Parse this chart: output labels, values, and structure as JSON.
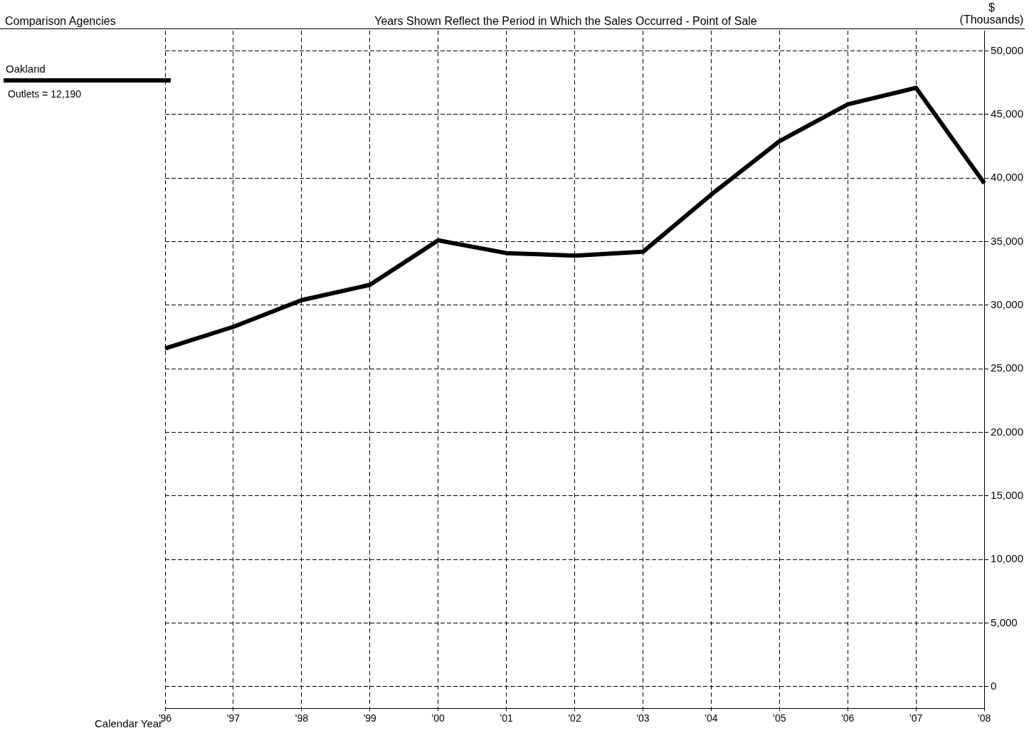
{
  "chart_data": {
    "type": "line",
    "title": "Years Shown Reflect the Period in Which the Sales Occurred - Point of Sale",
    "legend_title": "Comparison Agencies",
    "ylabel": "$ (Thousands)",
    "xlabel": "Calendar Year",
    "categories": [
      "'96",
      "'97",
      "'98",
      "'99",
      "'00",
      "'01",
      "'02",
      "'03",
      "'04",
      "'05",
      "'06",
      "'07",
      "'08"
    ],
    "series": [
      {
        "name": "Oakland",
        "color": "#000000",
        "values": [
          26600,
          28300,
          30400,
          31600,
          35100,
          34100,
          33900,
          34200,
          38700,
          42900,
          45800,
          47100,
          39600
        ]
      }
    ],
    "ylim": [
      -1700,
      51600
    ],
    "yticks": [
      {
        "value": 0,
        "label": "0"
      },
      {
        "value": 5000,
        "label": "5,000"
      },
      {
        "value": 10000,
        "label": "10,000"
      },
      {
        "value": 15000,
        "label": "15,000"
      },
      {
        "value": 20000,
        "label": "20,000"
      },
      {
        "value": 25000,
        "label": "25,000"
      },
      {
        "value": 30000,
        "label": "30,000"
      },
      {
        "value": 35000,
        "label": "35,000"
      },
      {
        "value": 40000,
        "label": "40,000"
      },
      {
        "value": 45000,
        "label": "45,000"
      },
      {
        "value": 50000,
        "label": "50,000"
      }
    ],
    "grid": true,
    "legend": "left",
    "marker": "none",
    "line_style": "solid",
    "annotations": [
      "Outlets = 12,190"
    ]
  }
}
